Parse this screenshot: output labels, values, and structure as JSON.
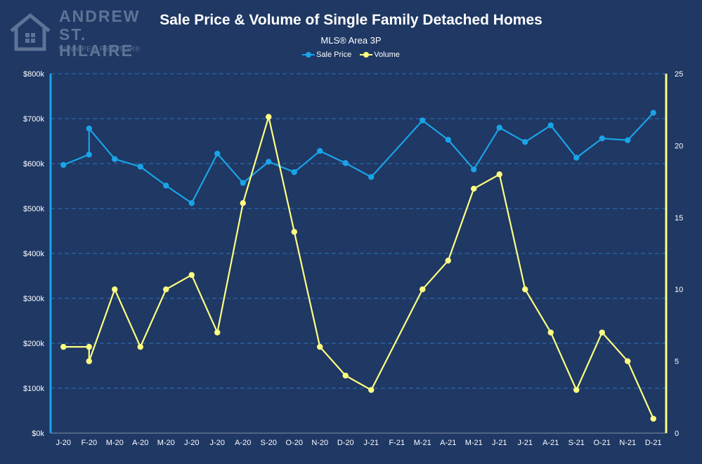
{
  "logo": {
    "line1": "ANDREW",
    "line2": "ST. HILAIRE",
    "tagline": "WINNIPEG REALTOR®"
  },
  "chart_data": {
    "type": "line",
    "title": "Sale Price & Volume of Single Family Detached Homes",
    "subtitle": "MLS® Area 3P",
    "legend_position": "top-center",
    "grid": true,
    "categories": [
      "J-20",
      "F-20",
      "M-20",
      "A-20",
      "M-20",
      "J-20",
      "J-20",
      "A-20",
      "S-20",
      "O-20",
      "N-20",
      "D-20",
      "J-21",
      "F-21",
      "M-21",
      "A-21",
      "M-21",
      "J-21",
      "J-21",
      "A-21",
      "S-21",
      "O-21",
      "N-21",
      "D-21"
    ],
    "y_left": {
      "ylim": [
        0,
        800000
      ],
      "ticks": [
        "$0k",
        "$100k",
        "$200k",
        "$300k",
        "$400k",
        "$500k",
        "$600k",
        "$700k",
        "$800k"
      ]
    },
    "y_right": {
      "ylim": [
        0,
        25
      ],
      "ticks": [
        "0",
        "5",
        "10",
        "15",
        "20",
        "25"
      ]
    },
    "series": [
      {
        "name": "Sale Price",
        "axis": "left",
        "color": "#1aa3e8",
        "points": [
          {
            "x": 0,
            "y": 597000
          },
          {
            "x": 1,
            "y": 620000
          },
          {
            "x": 1,
            "y": 678000
          },
          {
            "x": 2,
            "y": 610000
          },
          {
            "x": 3,
            "y": 593000
          },
          {
            "x": 4,
            "y": 551000
          },
          {
            "x": 5,
            "y": 512000
          },
          {
            "x": 6,
            "y": 622000
          },
          {
            "x": 7,
            "y": 557000
          },
          {
            "x": 8,
            "y": 604000
          },
          {
            "x": 9,
            "y": 581000
          },
          {
            "x": 10,
            "y": 628000
          },
          {
            "x": 11,
            "y": 601000
          },
          {
            "x": 12,
            "y": 570000
          },
          {
            "x": 14,
            "y": 696000
          },
          {
            "x": 15,
            "y": 653000
          },
          {
            "x": 16,
            "y": 587000
          },
          {
            "x": 17,
            "y": 680000
          },
          {
            "x": 18,
            "y": 648000
          },
          {
            "x": 19,
            "y": 685000
          },
          {
            "x": 20,
            "y": 613000
          },
          {
            "x": 21,
            "y": 656000
          },
          {
            "x": 22,
            "y": 652000
          },
          {
            "x": 23,
            "y": 713000
          }
        ]
      },
      {
        "name": "Volume",
        "axis": "right",
        "color": "#ffff80",
        "points": [
          {
            "x": 0,
            "y": 6
          },
          {
            "x": 1,
            "y": 6
          },
          {
            "x": 1,
            "y": 5
          },
          {
            "x": 2,
            "y": 10
          },
          {
            "x": 3,
            "y": 6
          },
          {
            "x": 4,
            "y": 10
          },
          {
            "x": 5,
            "y": 11
          },
          {
            "x": 6,
            "y": 7
          },
          {
            "x": 7,
            "y": 16
          },
          {
            "x": 8,
            "y": 22
          },
          {
            "x": 9,
            "y": 14
          },
          {
            "x": 10,
            "y": 6
          },
          {
            "x": 11,
            "y": 4
          },
          {
            "x": 12,
            "y": 3
          },
          {
            "x": 14,
            "y": 10
          },
          {
            "x": 15,
            "y": 12
          },
          {
            "x": 16,
            "y": 17
          },
          {
            "x": 17,
            "y": 18
          },
          {
            "x": 18,
            "y": 10
          },
          {
            "x": 19,
            "y": 7
          },
          {
            "x": 20,
            "y": 3
          },
          {
            "x": 21,
            "y": 7
          },
          {
            "x": 22,
            "y": 5
          },
          {
            "x": 23,
            "y": 1
          }
        ]
      }
    ],
    "colors": {
      "background": "#1f3864",
      "grid": "#2e75b6",
      "axis_left": "#1aa3e8",
      "axis_right": "#ffff80"
    }
  }
}
